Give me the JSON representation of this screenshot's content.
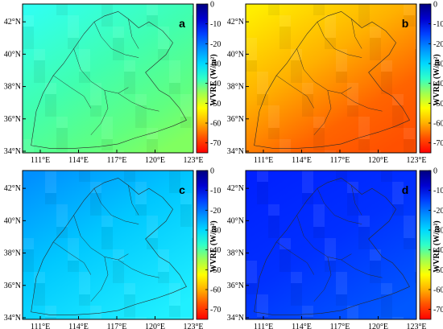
{
  "figure": {
    "panels": [
      {
        "letter": "a",
        "palette": "cyan-green",
        "mean_wvre": -38
      },
      {
        "letter": "b",
        "palette": "yellow-orange",
        "mean_wvre": -62
      },
      {
        "letter": "c",
        "palette": "blue-cyan",
        "mean_wvre": -27
      },
      {
        "letter": "d",
        "palette": "deep-blue",
        "mean_wvre": -14
      }
    ],
    "lon_ticks": [
      "111°E",
      "114°E",
      "117°E",
      "120°E",
      "123°E"
    ],
    "lat_ticks": [
      "34°N",
      "36°N",
      "38°N",
      "40°N",
      "42°N"
    ],
    "colorbar": {
      "label": "WVRE (W/m²)",
      "label_parts": {
        "main": "WVRE (W/m",
        "sup": "2",
        "close": ")"
      },
      "ticks": [
        "0",
        "-10",
        "-20",
        "-30",
        "-40",
        "-50",
        "-60",
        "-70"
      ],
      "range": [
        -75,
        0
      ],
      "colors": [
        "#000080",
        "#0000d0",
        "#0040ff",
        "#0090ff",
        "#00d8ff",
        "#30ffc8",
        "#a0ff50",
        "#ffff00",
        "#ffb000",
        "#ff5000",
        "#ff0000"
      ]
    }
  },
  "chart_data": {
    "type": "heatmap",
    "variable": "WVRE (W/m²)",
    "x": [
      "111°E",
      "114°E",
      "117°E",
      "120°E",
      "123°E"
    ],
    "y": [
      "34°N",
      "36°N",
      "38°N",
      "40°N",
      "42°N"
    ],
    "value_range": [
      -75,
      0
    ],
    "panels": [
      {
        "name": "a",
        "mean": -38
      },
      {
        "name": "b",
        "mean": -62
      },
      {
        "name": "c",
        "mean": -27
      },
      {
        "name": "d",
        "mean": -14
      }
    ]
  }
}
